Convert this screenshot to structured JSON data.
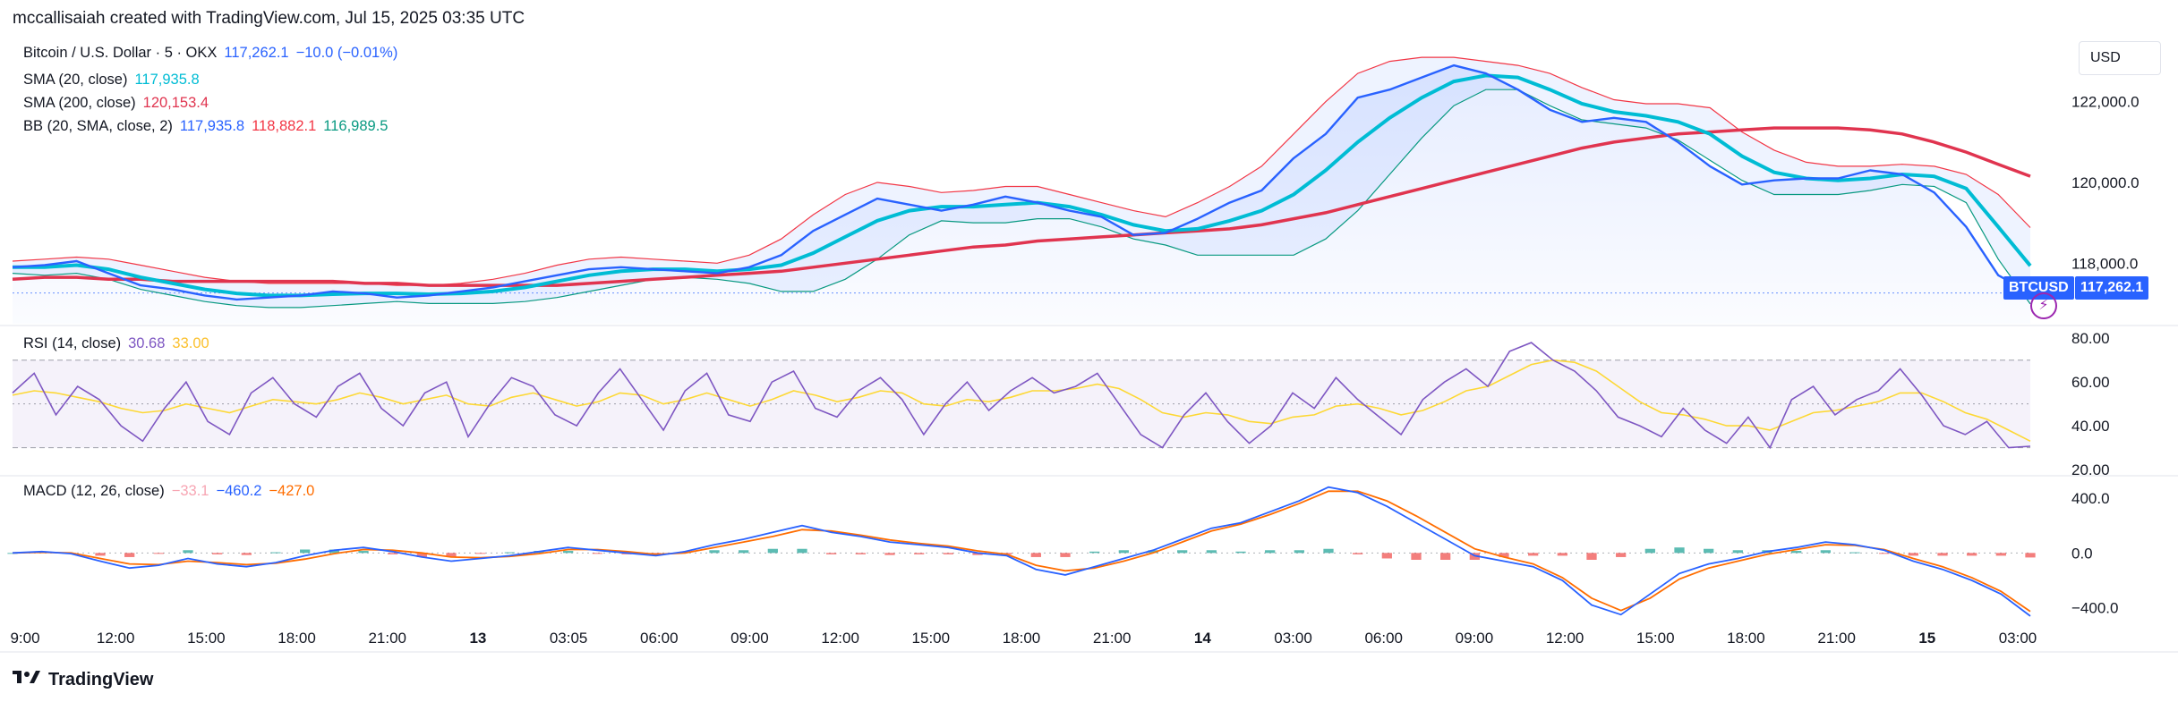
{
  "header": "mccallisaiah created with TradingView.com, Jul 15, 2025 03:35 UTC",
  "brand": "TradingView",
  "currency_button": "USD",
  "legend": {
    "main": {
      "name": "Bitcoin / U.S. Dollar · 5 · OKX",
      "price": "117,262.1",
      "change": "−10.0 (−0.01%)"
    },
    "sma20": {
      "name": "SMA (20, close)",
      "value": "117,935.8"
    },
    "sma200": {
      "name": "SMA (200, close)",
      "value": "120,153.4"
    },
    "bb": {
      "name": "BB (20, SMA, close, 2)",
      "basis": "117,935.8",
      "upper": "118,882.1",
      "lower": "116,989.5"
    },
    "rsi": {
      "name": "RSI (14, close)",
      "value": "30.68",
      "ma": "33.00"
    },
    "macd": {
      "name": "MACD (12, 26, close)",
      "hist": "−33.1",
      "macd": "−460.2",
      "signal": "−427.0"
    }
  },
  "price_tag": {
    "symbol": "BTCUSD",
    "value": "117,262.1"
  },
  "colors": {
    "price": "#2962ff",
    "sma20": "#00bcd4",
    "sma200": "#e0344f",
    "bb_upper": "#f23645",
    "bb_lower": "#089981",
    "rsi": "#7e57c2",
    "rsi_ma": "#fdd835",
    "macd": "#2962ff",
    "signal": "#ff6d00",
    "hist_pos": "#26a69a",
    "hist_neg": "#ef5350",
    "muted_pink": "#f7a5b3"
  },
  "chart_data": [
    {
      "type": "line",
      "panel": "price",
      "x_ticks": [
        "9:00",
        "12:00",
        "15:00",
        "18:00",
        "21:00",
        "13",
        "03:05",
        "06:00",
        "09:00",
        "12:00",
        "15:00",
        "18:00",
        "21:00",
        "14",
        "03:00",
        "06:00",
        "09:00",
        "12:00",
        "15:00",
        "18:00",
        "21:00",
        "15",
        "03:00"
      ],
      "y_ticks": [
        "122,000.0",
        "120,000.0",
        "118,000.0"
      ],
      "ylim": [
        116500,
        123500
      ],
      "series": [
        {
          "name": "Bitcoin / U.S. Dollar",
          "values": [
            117900,
            117950,
            118050,
            117750,
            117450,
            117350,
            117200,
            117100,
            117150,
            117200,
            117300,
            117250,
            117150,
            117200,
            117300,
            117400,
            117550,
            117700,
            117850,
            117900,
            117850,
            117800,
            117750,
            117900,
            118200,
            118800,
            119200,
            119600,
            119450,
            119300,
            119450,
            119650,
            119500,
            119300,
            119150,
            118700,
            118750,
            119100,
            119500,
            119800,
            120600,
            121200,
            122100,
            122300,
            122600,
            122900,
            122700,
            122300,
            121800,
            121500,
            121600,
            121500,
            121000,
            120400,
            119950,
            120050,
            120100,
            120100,
            120300,
            120200,
            119750,
            118900,
            117700,
            117262
          ]
        },
        {
          "name": "SMA (20, close)",
          "values": [
            117900,
            117900,
            117950,
            117850,
            117650,
            117500,
            117350,
            117250,
            117200,
            117200,
            117230,
            117250,
            117250,
            117230,
            117250,
            117300,
            117400,
            117550,
            117700,
            117800,
            117850,
            117850,
            117800,
            117850,
            117950,
            118250,
            118650,
            119050,
            119300,
            119400,
            119400,
            119450,
            119500,
            119400,
            119200,
            118950,
            118800,
            118850,
            119050,
            119300,
            119700,
            120300,
            121000,
            121600,
            122100,
            122500,
            122650,
            122600,
            122300,
            121950,
            121750,
            121650,
            121500,
            121200,
            120650,
            120250,
            120100,
            120050,
            120100,
            120200,
            120150,
            119850,
            118900,
            117936
          ]
        },
        {
          "name": "SMA (200, close)",
          "values": [
            117600,
            117650,
            117650,
            117600,
            117600,
            117550,
            117550,
            117550,
            117550,
            117550,
            117550,
            117500,
            117500,
            117450,
            117450,
            117450,
            117450,
            117450,
            117500,
            117550,
            117600,
            117650,
            117700,
            117750,
            117800,
            117900,
            118000,
            118100,
            118200,
            118300,
            118400,
            118450,
            118550,
            118600,
            118650,
            118700,
            118750,
            118800,
            118850,
            118950,
            119100,
            119250,
            119450,
            119650,
            119850,
            120050,
            120250,
            120450,
            120650,
            120850,
            121000,
            121100,
            121200,
            121250,
            121300,
            121350,
            121350,
            121350,
            121300,
            121200,
            121000,
            120750,
            120450,
            120153
          ]
        },
        {
          "name": "BB upper",
          "values": [
            118050,
            118100,
            118150,
            118100,
            117950,
            117800,
            117650,
            117550,
            117500,
            117500,
            117500,
            117500,
            117450,
            117450,
            117500,
            117600,
            117750,
            117950,
            118100,
            118150,
            118100,
            118050,
            118000,
            118200,
            118600,
            119200,
            119700,
            120000,
            119900,
            119750,
            119800,
            119900,
            119900,
            119700,
            119500,
            119300,
            119150,
            119500,
            119900,
            120400,
            121200,
            122000,
            122700,
            123000,
            123100,
            123100,
            123000,
            122900,
            122700,
            122350,
            122050,
            121950,
            121950,
            121850,
            121250,
            120800,
            120500,
            120400,
            120400,
            120450,
            120400,
            120200,
            119700,
            118882
          ]
        },
        {
          "name": "BB lower",
          "values": [
            117750,
            117700,
            117750,
            117600,
            117350,
            117200,
            117050,
            116950,
            116900,
            116900,
            116950,
            117000,
            117050,
            117000,
            117000,
            117000,
            117050,
            117150,
            117300,
            117450,
            117600,
            117650,
            117600,
            117500,
            117300,
            117300,
            117600,
            118100,
            118700,
            119050,
            119000,
            119000,
            119100,
            119100,
            118900,
            118600,
            118450,
            118200,
            118200,
            118200,
            118200,
            118600,
            119300,
            120200,
            121100,
            121900,
            122300,
            122300,
            121900,
            121550,
            121450,
            121350,
            121050,
            120550,
            120050,
            119700,
            119700,
            119700,
            119800,
            119950,
            119900,
            119500,
            118100,
            116990
          ]
        }
      ]
    },
    {
      "type": "line",
      "panel": "rsi",
      "y_ticks": [
        "80.00",
        "60.00",
        "40.00",
        "20.00"
      ],
      "ylim": [
        18,
        85
      ],
      "bands": [
        30,
        50,
        70
      ],
      "series": [
        {
          "name": "RSI (14, close)",
          "values": [
            55,
            64,
            45,
            58,
            52,
            40,
            33,
            48,
            60,
            42,
            36,
            55,
            62,
            50,
            44,
            58,
            64,
            48,
            40,
            55,
            60,
            35,
            50,
            62,
            58,
            45,
            40,
            55,
            66,
            52,
            38,
            56,
            64,
            45,
            42,
            60,
            65,
            48,
            44,
            56,
            62,
            52,
            36,
            50,
            60,
            47,
            56,
            62,
            55,
            58,
            64,
            50,
            36,
            30,
            45,
            55,
            42,
            32,
            40,
            55,
            48,
            62,
            52,
            44,
            36,
            52,
            60,
            66,
            58,
            74,
            78,
            70,
            65,
            56,
            44,
            40,
            35,
            48,
            38,
            32,
            44,
            30,
            52,
            58,
            45,
            52,
            56,
            66,
            54,
            40,
            36,
            42,
            30,
            30.68
          ]
        },
        {
          "name": "RSI MA",
          "values": [
            54,
            56,
            55,
            53,
            51,
            48,
            46,
            47,
            50,
            48,
            46,
            49,
            52,
            51,
            50,
            52,
            55,
            53,
            50,
            52,
            54,
            50,
            49,
            53,
            55,
            52,
            49,
            51,
            55,
            54,
            50,
            52,
            55,
            52,
            49,
            52,
            56,
            54,
            51,
            53,
            56,
            55,
            50,
            49,
            52,
            51,
            53,
            56,
            56,
            57,
            59,
            57,
            52,
            46,
            44,
            46,
            45,
            42,
            41,
            44,
            45,
            49,
            50,
            48,
            45,
            47,
            51,
            56,
            58,
            63,
            68,
            70,
            69,
            65,
            58,
            51,
            46,
            45,
            43,
            40,
            40,
            38,
            42,
            46,
            47,
            49,
            51,
            55,
            55,
            51,
            46,
            43,
            38,
            33
          ]
        }
      ]
    },
    {
      "type": "line",
      "panel": "macd",
      "y_ticks": [
        "400.0",
        "0.0",
        "−400.0"
      ],
      "ylim": [
        -500,
        550
      ],
      "series": [
        {
          "name": "MACD",
          "values": [
            0,
            10,
            -5,
            -60,
            -110,
            -90,
            -40,
            -80,
            -100,
            -70,
            -20,
            20,
            40,
            10,
            -30,
            -60,
            -40,
            -20,
            10,
            40,
            20,
            0,
            -20,
            10,
            60,
            100,
            150,
            200,
            150,
            120,
            80,
            60,
            40,
            0,
            -20,
            -120,
            -160,
            -100,
            -40,
            20,
            100,
            180,
            220,
            300,
            380,
            480,
            440,
            340,
            220,
            100,
            -20,
            -60,
            -100,
            -200,
            -380,
            -450,
            -300,
            -150,
            -80,
            -40,
            10,
            40,
            80,
            60,
            20,
            -60,
            -120,
            -200,
            -300,
            -460
          ]
        },
        {
          "name": "Signal",
          "values": [
            0,
            5,
            0,
            -40,
            -80,
            -85,
            -60,
            -70,
            -85,
            -75,
            -45,
            -5,
            25,
            20,
            0,
            -30,
            -35,
            -25,
            -5,
            25,
            25,
            10,
            -10,
            0,
            40,
            80,
            120,
            170,
            160,
            130,
            95,
            70,
            50,
            15,
            -10,
            -90,
            -130,
            -110,
            -60,
            0,
            80,
            160,
            210,
            280,
            360,
            450,
            450,
            380,
            270,
            150,
            30,
            -30,
            -80,
            -180,
            -330,
            -420,
            -330,
            -190,
            -110,
            -60,
            -10,
            25,
            60,
            55,
            25,
            -40,
            -100,
            -180,
            -280,
            -427
          ]
        },
        {
          "name": "Histogram",
          "values": [
            0,
            5,
            -5,
            -20,
            -30,
            -5,
            20,
            -10,
            -15,
            5,
            25,
            25,
            15,
            -10,
            -30,
            -30,
            -5,
            5,
            15,
            15,
            -5,
            -10,
            -10,
            10,
            20,
            20,
            30,
            30,
            -10,
            -10,
            -15,
            -10,
            -10,
            -15,
            -10,
            -30,
            -30,
            10,
            20,
            20,
            20,
            20,
            10,
            20,
            20,
            30,
            -10,
            -40,
            -50,
            -50,
            -50,
            -30,
            -20,
            -20,
            -50,
            -30,
            30,
            40,
            30,
            20,
            20,
            15,
            20,
            5,
            -5,
            -20,
            -20,
            -20,
            -20,
            -33
          ]
        }
      ]
    }
  ]
}
